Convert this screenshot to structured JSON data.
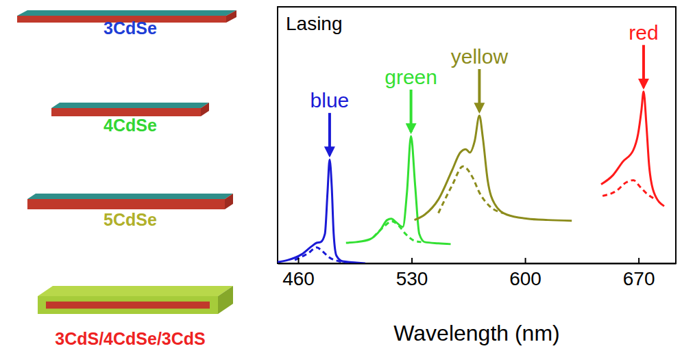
{
  "chart_data": {
    "type": "line",
    "title": "Lasing",
    "x_label": "Wavelength (nm)",
    "xlim": [
      447.3,
      693
    ],
    "xticks": [
      460,
      530,
      600,
      670
    ],
    "ylim": [
      0,
      1
    ],
    "tick_labels": "x",
    "grid": false,
    "series": [
      {
        "name": "blue",
        "color": "#1a1ad6",
        "line_style": "solid",
        "x": [
          447.3,
          453.7,
          462.1,
          468.4,
          471.4,
          473.9,
          476.5,
          478.1,
          479.4,
          480.7,
          481.9,
          483.6,
          487.4,
          495.9,
          501.4
        ],
        "values": [
          0.005,
          0.013,
          0.035,
          0.067,
          0.08,
          0.083,
          0.115,
          0.276,
          0.405,
          0.3,
          0.115,
          0.03,
          0.008,
          0.003,
          0
        ]
      },
      {
        "color": "#1a1ad6",
        "line_style": "dashed",
        "x": [
          457.9,
          466.3,
          471.4,
          474.8,
          479.0,
          485.3,
          491.6
        ],
        "values": [
          0.013,
          0.04,
          0.062,
          0.048,
          0.024,
          0.008,
          0.003
        ]
      },
      {
        "name": "green",
        "color": "#33e033",
        "line_style": "solid",
        "x": [
          489.5,
          495.9,
          504.3,
          510.6,
          514.9,
          517.4,
          520.3,
          524.6,
          527.1,
          529.6,
          532.2,
          534.7,
          538.1,
          546.5,
          554.1
        ],
        "values": [
          0.08,
          0.083,
          0.094,
          0.129,
          0.169,
          0.174,
          0.161,
          0.142,
          0.276,
          0.496,
          0.3,
          0.115,
          0.083,
          0.078,
          0.075
        ]
      },
      {
        "color": "#33e033",
        "line_style": "dashed",
        "x": [
          506.4,
          512.7,
          517.8,
          522.0,
          526.2,
          531.7,
          535.9
        ],
        "values": [
          0.102,
          0.142,
          0.164,
          0.147,
          0.115,
          0.088,
          0.083
        ]
      },
      {
        "name": "yellow",
        "color": "#8c8c1c",
        "line_style": "solid",
        "x": [
          531.7,
          538.1,
          546.5,
          554.9,
          560.0,
          563.4,
          565.9,
          568.9,
          571.8,
          573.9,
          576.9,
          581.1,
          588.7,
          601.4,
          614.1,
          628.8
        ],
        "values": [
          0.169,
          0.19,
          0.249,
          0.362,
          0.432,
          0.445,
          0.432,
          0.477,
          0.576,
          0.491,
          0.324,
          0.233,
          0.19,
          0.174,
          0.169,
          0.166
        ]
      },
      {
        "color": "#8c8c1c",
        "line_style": "dashed",
        "x": [
          546.5,
          554.9,
          561.7,
          567.6,
          571.8,
          578.1,
          586.6
        ],
        "values": [
          0.196,
          0.303,
          0.378,
          0.335,
          0.276,
          0.223,
          0.196
        ]
      },
      {
        "name": "red",
        "color": "#ff1a1a",
        "line_style": "solid",
        "x": [
          646.9,
          654.1,
          660.4,
          666.8,
          669.7,
          671.8,
          673.1,
          674.8,
          676.5,
          679.5,
          685.8
        ],
        "values": [
          0.308,
          0.343,
          0.397,
          0.442,
          0.504,
          0.598,
          0.67,
          0.544,
          0.383,
          0.276,
          0.223
        ]
      },
      {
        "color": "#ff1a1a",
        "line_style": "dashed",
        "x": [
          647.8,
          656.2,
          662.5,
          666.8,
          671.0,
          675.2,
          680.7
        ],
        "values": [
          0.263,
          0.282,
          0.316,
          0.324,
          0.298,
          0.271,
          0.249
        ]
      }
    ]
  },
  "structures": [
    {
      "label": "3CdSe",
      "color": "#1e3ed6"
    },
    {
      "label": "4CdSe",
      "color": "#33d633"
    },
    {
      "label": "5CdSe",
      "color": "#b0b02a"
    },
    {
      "label": "3CdS/4CdSe/3CdS",
      "color": "#ee2222"
    }
  ]
}
